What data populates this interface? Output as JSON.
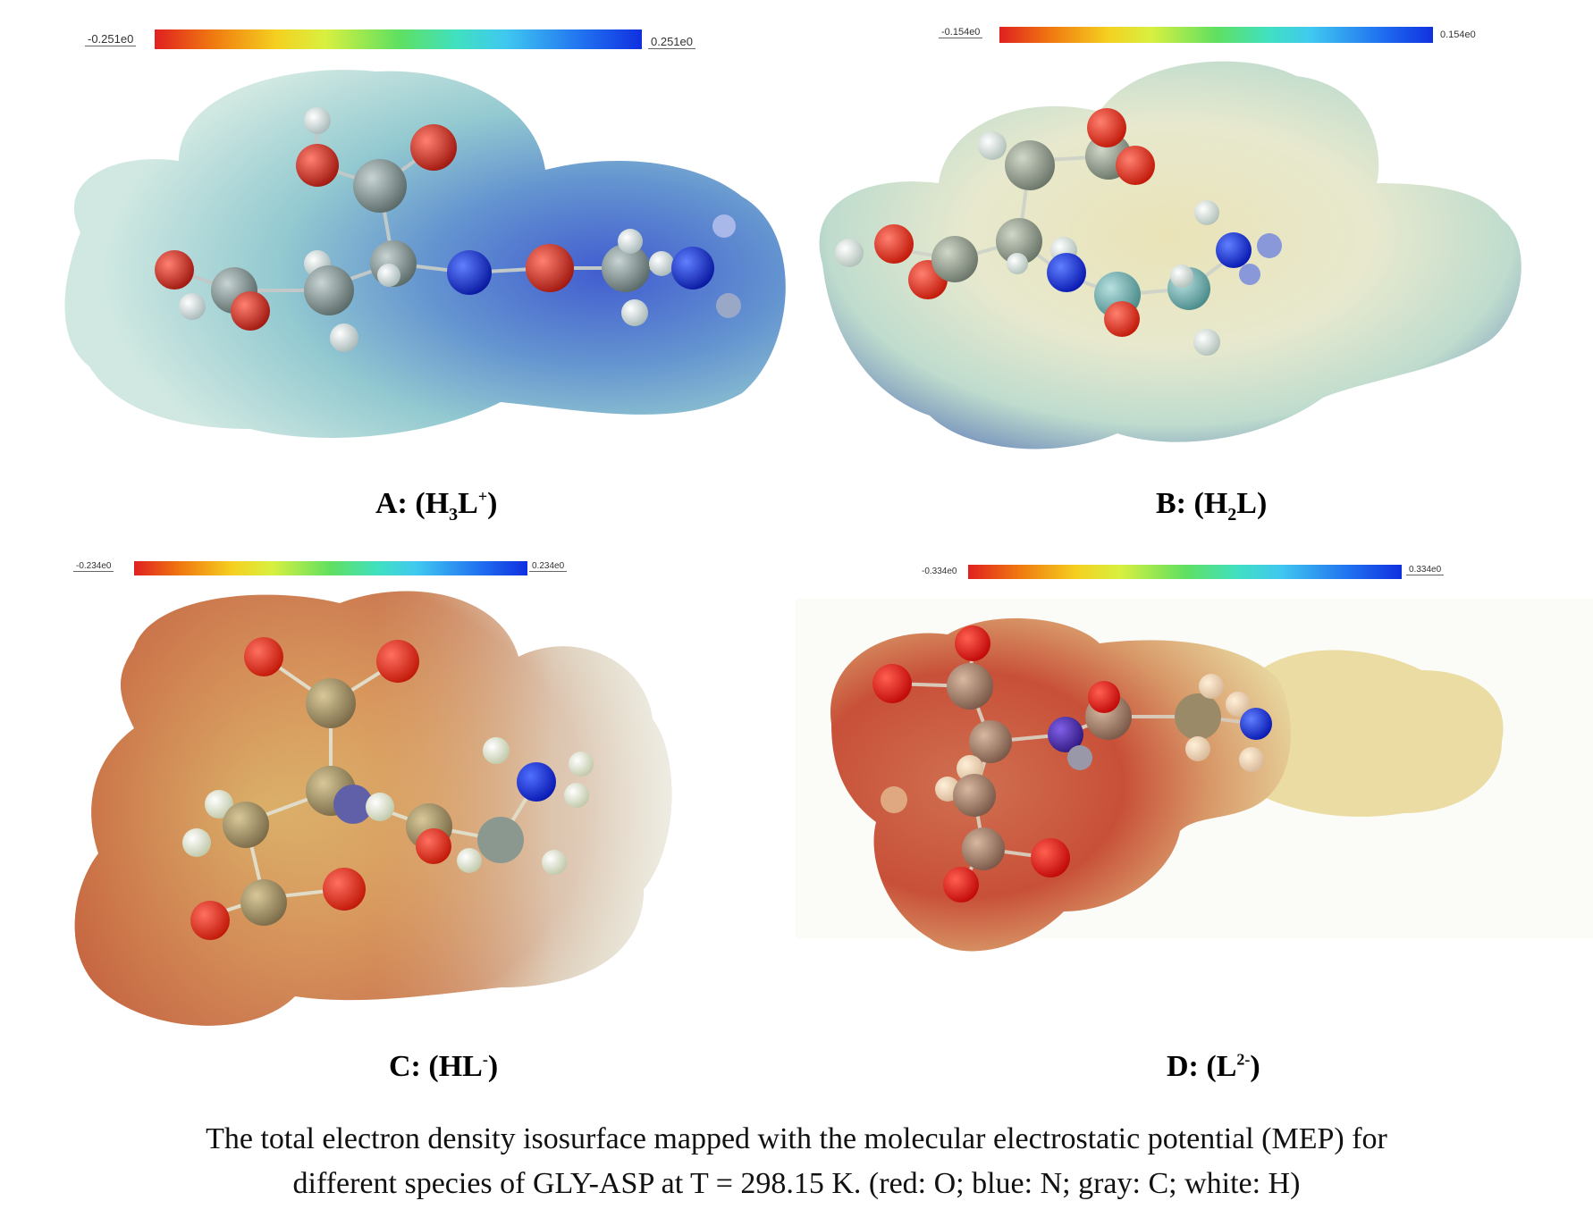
{
  "panels": {
    "A": {
      "scale_min": "-0.251e0",
      "scale_max": "0.251e0",
      "label_prefix": "A: (H",
      "label_sub": "3",
      "label_mid": "L",
      "label_sup": "+",
      "label_suffix": ")"
    },
    "B": {
      "scale_min": "-0.154e0",
      "scale_max": "0.154e0",
      "label_prefix": "B: (H",
      "label_sub": "2",
      "label_mid": "L",
      "label_suffix": ")"
    },
    "C": {
      "scale_min": "-0.234e0",
      "scale_max": "0.234e0",
      "label_prefix": "C: (HL",
      "label_sup": "-",
      "label_suffix": ")"
    },
    "D": {
      "scale_min": "-0.334e0",
      "scale_max": "0.334e0",
      "label_prefix": "D: (L",
      "label_sup": "2-",
      "label_suffix": ")"
    }
  },
  "caption": {
    "line1": "The total electron density isosurface mapped with the molecular electrostatic potential (MEP) for",
    "line2": "different species of GLY-ASP at T = 298.15 K. (red: O; blue: N; gray: C; white: H)"
  },
  "colors": {
    "oxygen": "#d0281c",
    "nitrogen": "#1838d8",
    "carbon": "#8c9a98",
    "hydrogen": "#f0f4f4"
  }
}
